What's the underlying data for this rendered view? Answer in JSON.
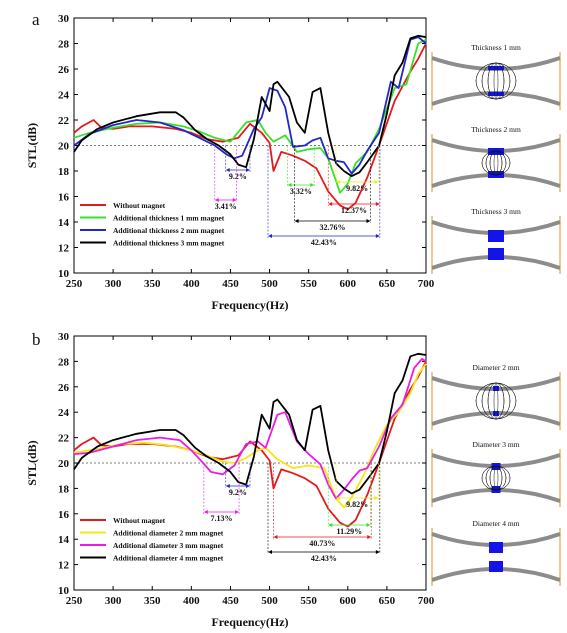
{
  "chart_data": [
    {
      "type": "line",
      "panel_label": "a",
      "xlabel": "Frequency(Hz)",
      "ylabel": "STL(dB)",
      "xlim": [
        250,
        700
      ],
      "ylim": [
        10,
        30
      ],
      "xticks": [
        250,
        300,
        350,
        400,
        450,
        500,
        550,
        600,
        650,
        700
      ],
      "yticks": [
        10,
        12,
        14,
        16,
        18,
        20,
        22,
        24,
        26,
        28,
        30
      ],
      "reference_line_y": 20,
      "legend_position": "bottom-left",
      "series": [
        {
          "name": "Without magnet",
          "color": "#e31a1c",
          "x": [
            250,
            260,
            275,
            285,
            300,
            320,
            350,
            380,
            400,
            420,
            440,
            460,
            475,
            490,
            500,
            505,
            515,
            530,
            545,
            560,
            575,
            590,
            600,
            610,
            625,
            640,
            660,
            680,
            690,
            700
          ],
          "y": [
            21.0,
            21.5,
            22.0,
            21.4,
            21.3,
            21.5,
            21.5,
            21.3,
            21.0,
            20.5,
            20.3,
            20.6,
            21.7,
            21.0,
            20.2,
            18.0,
            19.5,
            19.2,
            18.8,
            18.2,
            16.4,
            15.3,
            15.0,
            15.5,
            17.5,
            20.0,
            23.5,
            25.8,
            26.8,
            28.0
          ]
        },
        {
          "name": "Additional thickness 1 mm magnet",
          "color": "#37e02b",
          "x": [
            250,
            270,
            300,
            330,
            360,
            390,
            410,
            430,
            450,
            470,
            485,
            495,
            505,
            520,
            535,
            550,
            565,
            575,
            590,
            600,
            610,
            625,
            640,
            660,
            675,
            690,
            700
          ],
          "y": [
            20.6,
            21.0,
            21.4,
            21.7,
            21.8,
            21.5,
            21.1,
            20.6,
            20.3,
            21.8,
            22.0,
            21.0,
            20.3,
            20.8,
            19.5,
            19.7,
            19.8,
            19.0,
            16.3,
            17.0,
            18.6,
            19.5,
            21.3,
            24.5,
            24.8,
            28.0,
            28.3
          ]
        },
        {
          "name": "Additional thickness 2 mm magnet",
          "color": "#2128c8",
          "x": [
            250,
            270,
            300,
            330,
            360,
            390,
            410,
            430,
            445,
            455,
            465,
            480,
            490,
            500,
            510,
            520,
            530,
            545,
            555,
            565,
            575,
            585,
            595,
            605,
            615,
            625,
            640,
            655,
            665,
            680,
            690,
            700
          ],
          "y": [
            20.0,
            20.9,
            21.6,
            22.0,
            21.8,
            21.2,
            20.6,
            20.0,
            19.3,
            19.0,
            19.2,
            21.3,
            22.2,
            24.5,
            24.3,
            23.0,
            19.9,
            20.0,
            20.4,
            20.6,
            19.0,
            18.8,
            18.7,
            17.8,
            18.5,
            19.6,
            21.0,
            25.0,
            24.5,
            28.3,
            28.5,
            28.0
          ]
        },
        {
          "name": "Additional thickness 3 mm magnet",
          "color": "#000000",
          "x": [
            250,
            260,
            280,
            300,
            330,
            360,
            380,
            390,
            405,
            420,
            435,
            450,
            460,
            470,
            480,
            490,
            500,
            505,
            510,
            525,
            535,
            545,
            555,
            565,
            575,
            585,
            595,
            605,
            615,
            625,
            640,
            650,
            660,
            670,
            680,
            690,
            700
          ],
          "y": [
            19.5,
            20.4,
            21.3,
            21.8,
            22.3,
            22.6,
            22.6,
            22.2,
            21.2,
            20.5,
            20.0,
            19.3,
            18.5,
            18.3,
            20.5,
            23.8,
            22.7,
            24.8,
            25.0,
            23.8,
            21.8,
            21.0,
            24.2,
            24.5,
            21.0,
            18.6,
            18.0,
            17.6,
            17.9,
            18.7,
            20.0,
            22.5,
            25.5,
            26.5,
            28.4,
            28.6,
            28.5
          ]
        }
      ],
      "annotations": [
        {
          "text": "9.2%",
          "x_from": 444,
          "x_to": 475
        },
        {
          "text": "3.41%",
          "x_from": 430,
          "x_to": 458
        },
        {
          "text": "3.32%",
          "x_from": 523,
          "x_to": 557
        },
        {
          "text": "9.82%",
          "x_from": 585,
          "x_to": 639
        },
        {
          "text": "12.37%",
          "x_from": 575,
          "x_to": 641
        },
        {
          "text": "32.76%",
          "x_from": 532,
          "x_to": 629
        },
        {
          "text": "42.43%",
          "x_from": 498,
          "x_to": 641
        }
      ]
    },
    {
      "type": "line",
      "panel_label": "b",
      "xlabel": "Frequency(Hz)",
      "ylabel": "STL(dB)",
      "xlim": [
        250,
        700
      ],
      "ylim": [
        10,
        30
      ],
      "xticks": [
        250,
        300,
        350,
        400,
        450,
        500,
        550,
        600,
        650,
        700
      ],
      "yticks": [
        10,
        12,
        14,
        16,
        18,
        20,
        22,
        24,
        26,
        28,
        30
      ],
      "reference_line_y": 20,
      "legend_position": "bottom-left",
      "series": [
        {
          "name": "Without magnet",
          "color": "#e31a1c",
          "x": [
            250,
            260,
            275,
            285,
            300,
            320,
            350,
            380,
            400,
            420,
            440,
            460,
            475,
            490,
            500,
            505,
            515,
            530,
            545,
            560,
            575,
            590,
            600,
            610,
            625,
            640,
            660,
            680,
            690,
            700
          ],
          "y": [
            21.0,
            21.5,
            22.0,
            21.4,
            21.3,
            21.5,
            21.5,
            21.3,
            21.0,
            20.5,
            20.3,
            20.6,
            21.7,
            21.0,
            20.2,
            18.0,
            19.5,
            19.2,
            18.8,
            18.2,
            16.4,
            15.3,
            15.0,
            15.5,
            17.5,
            20.0,
            23.5,
            25.8,
            26.8,
            28.0
          ]
        },
        {
          "name": "Additional diameter 2 mm magnet",
          "color": "#f5e614",
          "x": [
            250,
            280,
            310,
            340,
            370,
            400,
            420,
            440,
            455,
            470,
            485,
            495,
            510,
            530,
            550,
            570,
            585,
            595,
            605,
            620,
            635,
            650,
            665,
            680,
            690,
            700
          ],
          "y": [
            20.8,
            21.1,
            21.5,
            21.6,
            21.4,
            21.0,
            20.6,
            20.1,
            20.0,
            20.4,
            21.0,
            21.2,
            20.3,
            19.6,
            19.8,
            19.6,
            17.2,
            16.5,
            17.3,
            19.0,
            21.2,
            23.0,
            24.0,
            25.5,
            27.0,
            27.8
          ]
        },
        {
          "name": "Additional diameter 3 mm magnet",
          "color": "#e81ee8",
          "x": [
            250,
            270,
            300,
            330,
            360,
            385,
            400,
            415,
            425,
            440,
            455,
            470,
            485,
            495,
            510,
            520,
            535,
            550,
            565,
            575,
            585,
            595,
            605,
            615,
            625,
            640,
            655,
            670,
            685,
            695,
            700
          ],
          "y": [
            20.7,
            20.8,
            21.3,
            21.8,
            22.0,
            21.8,
            21.0,
            20.0,
            19.3,
            19.1,
            19.8,
            21.5,
            21.7,
            21.2,
            23.8,
            24.0,
            21.7,
            20.7,
            19.9,
            18.3,
            17.2,
            17.9,
            18.7,
            19.4,
            19.6,
            21.3,
            23.5,
            24.6,
            27.5,
            28.2,
            28.0
          ]
        },
        {
          "name": "Additional diameter 4 mm magnet",
          "color": "#000000",
          "x": [
            250,
            260,
            280,
            300,
            330,
            360,
            380,
            390,
            405,
            420,
            435,
            450,
            460,
            470,
            480,
            490,
            500,
            505,
            510,
            525,
            535,
            545,
            555,
            565,
            575,
            585,
            595,
            605,
            615,
            625,
            640,
            650,
            660,
            670,
            680,
            690,
            700
          ],
          "y": [
            19.5,
            20.4,
            21.3,
            21.8,
            22.3,
            22.6,
            22.6,
            22.2,
            21.2,
            20.5,
            20.0,
            19.3,
            18.5,
            18.3,
            20.5,
            23.8,
            22.7,
            24.8,
            25.0,
            23.8,
            21.8,
            21.0,
            24.2,
            24.5,
            21.0,
            18.6,
            18.0,
            17.6,
            17.9,
            18.7,
            20.0,
            22.5,
            25.5,
            26.5,
            28.4,
            28.6,
            28.5
          ]
        }
      ],
      "annotations": [
        {
          "text": "9.2%",
          "x_from": 444,
          "x_to": 475
        },
        {
          "text": "7.13%",
          "x_from": 416,
          "x_to": 461
        },
        {
          "text": "11.29%",
          "x_from": 575,
          "x_to": 629
        },
        {
          "text": "9.82%",
          "x_from": 585,
          "x_to": 639
        },
        {
          "text": "40.73%",
          "x_from": 505,
          "x_to": 630
        },
        {
          "text": "42.43%",
          "x_from": 498,
          "x_to": 641
        }
      ]
    }
  ],
  "diagram_labels": {
    "a": [
      "Thickness 1 mm",
      "Thickness 2 mm",
      "Thickness 3 mm"
    ],
    "b": [
      "Diameter 2 mm",
      "Diameter 3 mm",
      "Diameter 4 mm"
    ]
  }
}
